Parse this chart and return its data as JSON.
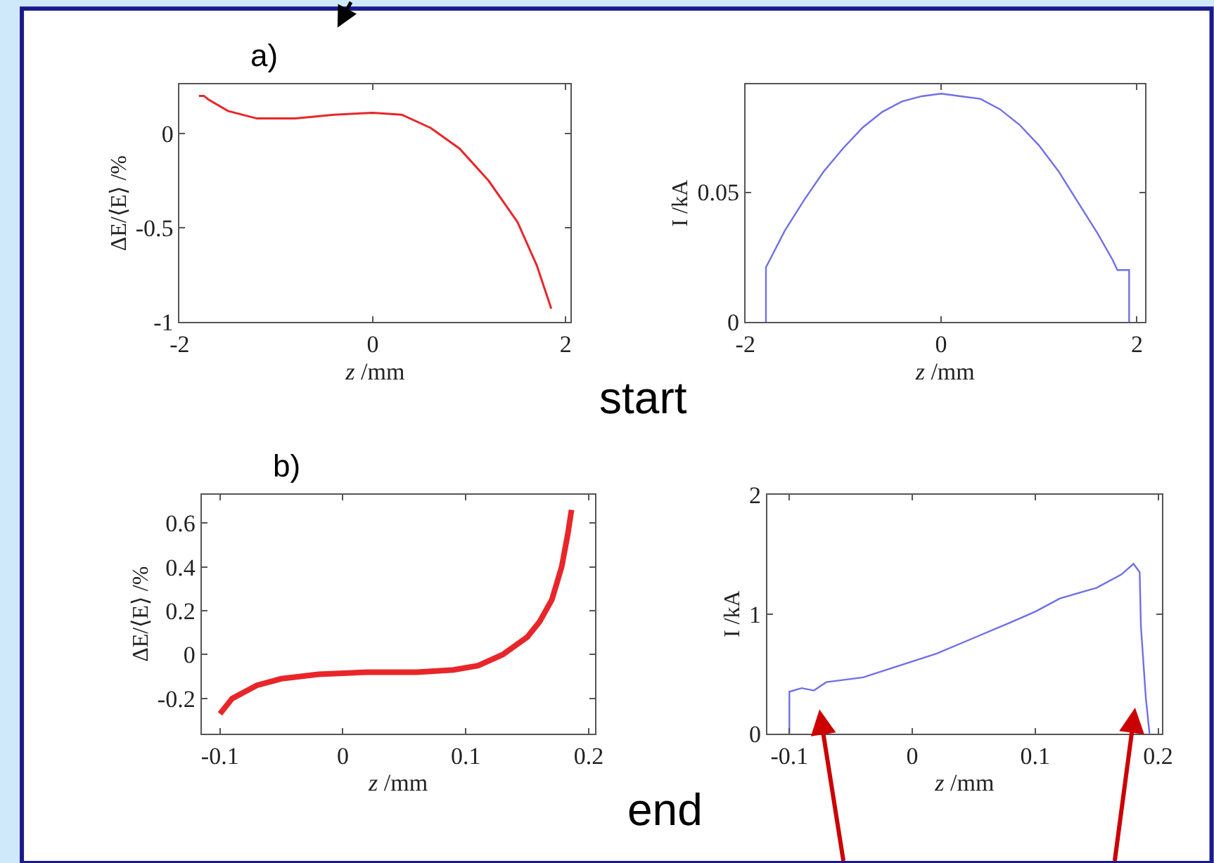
{
  "chart_data": [
    {
      "type": "line",
      "title": "a)",
      "xlabel": "z /mm",
      "ylabel": "ΔE/⟨E⟩ /%",
      "xlim": [
        -2,
        2.05
      ],
      "ylim": [
        -1,
        0.26
      ],
      "xticks": [
        -2,
        0,
        2
      ],
      "yticks": [
        -1,
        -0.5,
        0
      ],
      "x": [
        -1.8,
        -1.75,
        -1.7,
        -1.5,
        -1.2,
        -0.8,
        -0.4,
        0,
        0.3,
        0.6,
        0.9,
        1.2,
        1.5,
        1.7,
        1.85
      ],
      "series": [
        {
          "color": "#e8262a",
          "values": [
            0.2,
            0.2,
            0.18,
            0.12,
            0.08,
            0.08,
            0.1,
            0.11,
            0.1,
            0.03,
            -0.08,
            -0.25,
            -0.47,
            -0.7,
            -0.93
          ]
        }
      ]
    },
    {
      "type": "line",
      "xlabel": "z /mm",
      "ylabel": "I /kA",
      "xlim": [
        -2,
        2.08
      ],
      "ylim": [
        0,
        0.0915
      ],
      "xticks": [
        -2,
        0,
        2
      ],
      "yticks": [
        0,
        0.05
      ],
      "annotations": [
        "start"
      ],
      "x": [
        -1.79,
        -1.79,
        -1.6,
        -1.4,
        -1.2,
        -1.0,
        -0.8,
        -0.6,
        -0.4,
        -0.2,
        0,
        0.2,
        0.4,
        0.6,
        0.8,
        1.0,
        1.2,
        1.4,
        1.6,
        1.75,
        1.8,
        1.92,
        1.92
      ],
      "series": [
        {
          "color": "#6f6fe8",
          "values": [
            0,
            0.021,
            0.035,
            0.047,
            0.058,
            0.067,
            0.075,
            0.081,
            0.085,
            0.087,
            0.088,
            0.087,
            0.086,
            0.082,
            0.076,
            0.068,
            0.058,
            0.046,
            0.034,
            0.024,
            0.02,
            0.02,
            0
          ]
        }
      ]
    },
    {
      "type": "line",
      "title": "b)",
      "xlabel": "z /mm",
      "ylabel": "ΔE/⟨E⟩ /%",
      "xlim": [
        -0.115,
        0.205
      ],
      "ylim": [
        -0.36,
        0.73
      ],
      "xticks": [
        -0.1,
        0,
        0.1,
        0.2
      ],
      "yticks": [
        -0.2,
        0,
        0.2,
        0.4,
        0.6
      ],
      "x": [
        -0.1,
        -0.09,
        -0.07,
        -0.05,
        -0.02,
        0.02,
        0.06,
        0.09,
        0.11,
        0.13,
        0.15,
        0.16,
        0.17,
        0.178,
        0.183,
        0.186
      ],
      "series": [
        {
          "color": "#e8262a",
          "values": [
            -0.27,
            -0.2,
            -0.14,
            -0.11,
            -0.09,
            -0.08,
            -0.08,
            -0.07,
            -0.05,
            0.0,
            0.08,
            0.15,
            0.25,
            0.4,
            0.55,
            0.66
          ]
        }
      ]
    },
    {
      "type": "line",
      "xlabel": "z /mm",
      "ylabel": "I /kA",
      "xlim": [
        -0.118,
        0.203
      ],
      "ylim": [
        0,
        2
      ],
      "xticks": [
        -0.1,
        0,
        0.1,
        0.2
      ],
      "yticks": [
        0,
        1,
        2
      ],
      "annotations": [
        "end"
      ],
      "x": [
        -0.1,
        -0.1,
        -0.09,
        -0.08,
        -0.07,
        -0.04,
        -0.01,
        0.02,
        0.05,
        0.08,
        0.1,
        0.12,
        0.15,
        0.17,
        0.18,
        0.185,
        0.186,
        0.19,
        0.193
      ],
      "series": [
        {
          "color": "#6f6fe8",
          "values": [
            0,
            0.35,
            0.38,
            0.36,
            0.43,
            0.47,
            0.57,
            0.67,
            0.8,
            0.93,
            1.02,
            1.13,
            1.22,
            1.33,
            1.42,
            1.35,
            0.9,
            0.3,
            0
          ]
        }
      ]
    }
  ]
}
